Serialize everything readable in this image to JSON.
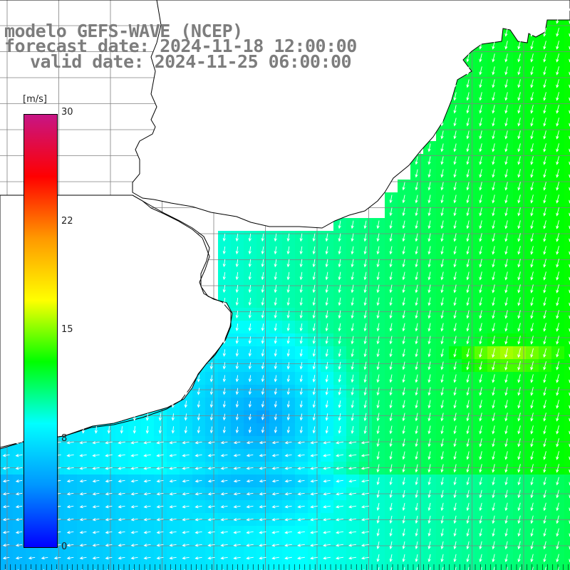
{
  "title": {
    "model": "modelo GEFS-WAVE (NCEP)",
    "forecast": "forecast date: 2024-11-18 12:00:00",
    "valid": "valid date: 2024-11-25 06:00:00"
  },
  "legend": {
    "unit": "[m/s]",
    "ticks": [
      "30",
      "22",
      "15",
      "8",
      "0"
    ],
    "tick_values": [
      30,
      22,
      15,
      8,
      0
    ],
    "range": [
      0,
      30
    ],
    "colors": [
      "#0000ff",
      "#0096ff",
      "#00ffff",
      "#00ff00",
      "#ffff00",
      "#ff9900",
      "#ff0000",
      "#c71585"
    ]
  },
  "map": {
    "land_color": "#ffffff",
    "coast_color": "#000000",
    "grid_color": "#808080",
    "arrow_color": "#ffffff",
    "grid": "on"
  }
}
